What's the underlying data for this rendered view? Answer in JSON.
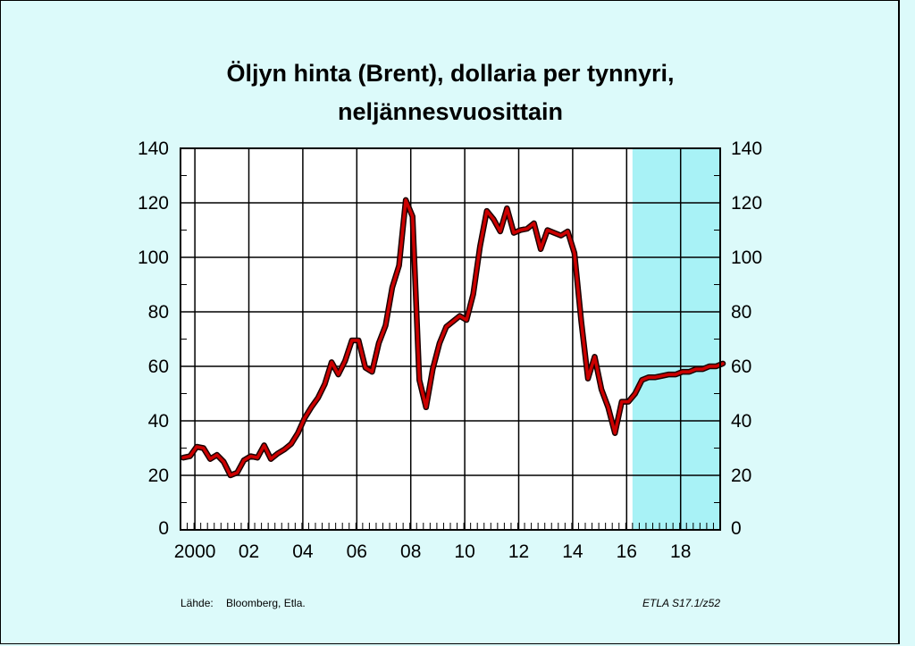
{
  "chart_data": {
    "type": "line",
    "title_line1": "Öljyn hinta (Brent), dollaria per tynnyri,",
    "title_line2": "neljännesvuosittain",
    "xlabel": "",
    "ylabel": "",
    "ylim": [
      0,
      140
    ],
    "yticks": [
      "0",
      "20",
      "40",
      "60",
      "80",
      "100",
      "120",
      "140"
    ],
    "x_tick_labels": [
      "2000",
      "02",
      "04",
      "06",
      "08",
      "10",
      "12",
      "14",
      "16",
      "18"
    ],
    "forecast_shading_from": "2016Q4",
    "forecast_color": "#a8f2f6",
    "line_color": "#cc0000",
    "grid": true,
    "series": [
      {
        "values": [
          26.5,
          27,
          30.5,
          30,
          26,
          27.5,
          25,
          20,
          21,
          25.5,
          27,
          26.5,
          31,
          26,
          28,
          29.5,
          31.5,
          35.5,
          41,
          45,
          48.5,
          53.5,
          61.5,
          57,
          62,
          69.5,
          69.5,
          59.5,
          58,
          68.5,
          75,
          89,
          97,
          121,
          115,
          55,
          45,
          59,
          68.5,
          74.5,
          76.5,
          78.5,
          77,
          86.5,
          104,
          117,
          114,
          109.5,
          118,
          109,
          110,
          110.5,
          112.5,
          103,
          110,
          109,
          108,
          109.5,
          101.5,
          76.5,
          55.5,
          63.5,
          51.5,
          45,
          35.5,
          47,
          47,
          50,
          55,
          56,
          56,
          56.5,
          57,
          57,
          58,
          58,
          59,
          59,
          60,
          60,
          61
        ]
      }
    ]
  },
  "footer": {
    "source_label": "Lähde:",
    "source_text": "Bloomberg, Etla.",
    "code": "ETLA S17.1/z52"
  }
}
